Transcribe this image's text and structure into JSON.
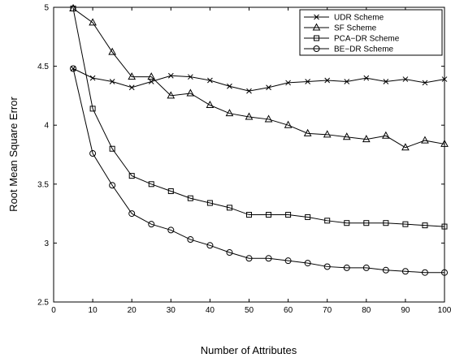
{
  "chart_data": {
    "type": "line",
    "title": "",
    "xlabel": "Number of Attributes",
    "ylabel": "Root Mean Square Error",
    "xlim": [
      0,
      100
    ],
    "ylim": [
      2.5,
      5
    ],
    "xticks": [
      0,
      10,
      20,
      30,
      40,
      50,
      60,
      70,
      80,
      90,
      100
    ],
    "yticks": [
      2.5,
      3,
      3.5,
      4,
      4.5,
      5
    ],
    "ytick_labels": [
      "2.5",
      "3",
      "3.5",
      "4",
      "4.5",
      "5"
    ],
    "grid": false,
    "legend_position": "top-right",
    "x": [
      5,
      10,
      15,
      20,
      25,
      30,
      35,
      40,
      45,
      50,
      55,
      60,
      65,
      70,
      75,
      80,
      85,
      90,
      95,
      100
    ],
    "series": [
      {
        "name": "UDR Scheme",
        "marker": "x",
        "values": [
          4.48,
          4.4,
          4.37,
          4.32,
          4.37,
          4.42,
          4.41,
          4.38,
          4.33,
          4.29,
          4.32,
          4.36,
          4.37,
          4.38,
          4.37,
          4.4,
          4.37,
          4.39,
          4.36,
          4.39
        ]
      },
      {
        "name": "SF Scheme",
        "marker": "triangle",
        "values": [
          4.99,
          4.87,
          4.62,
          4.41,
          4.41,
          4.25,
          4.27,
          4.17,
          4.1,
          4.07,
          4.05,
          4.0,
          3.93,
          3.92,
          3.9,
          3.88,
          3.91,
          3.81,
          3.87,
          3.84
        ]
      },
      {
        "name": "PCA−DR Scheme",
        "marker": "square",
        "values": [
          4.99,
          4.14,
          3.8,
          3.57,
          3.5,
          3.44,
          3.38,
          3.34,
          3.3,
          3.24,
          3.24,
          3.24,
          3.22,
          3.19,
          3.17,
          3.17,
          3.17,
          3.16,
          3.15,
          3.14
        ]
      },
      {
        "name": "BE−DR Scheme",
        "marker": "circle",
        "values": [
          4.48,
          3.76,
          3.49,
          3.25,
          3.16,
          3.11,
          3.03,
          2.98,
          2.92,
          2.87,
          2.87,
          2.85,
          2.83,
          2.8,
          2.79,
          2.79,
          2.77,
          2.76,
          2.75,
          2.75
        ]
      }
    ]
  }
}
